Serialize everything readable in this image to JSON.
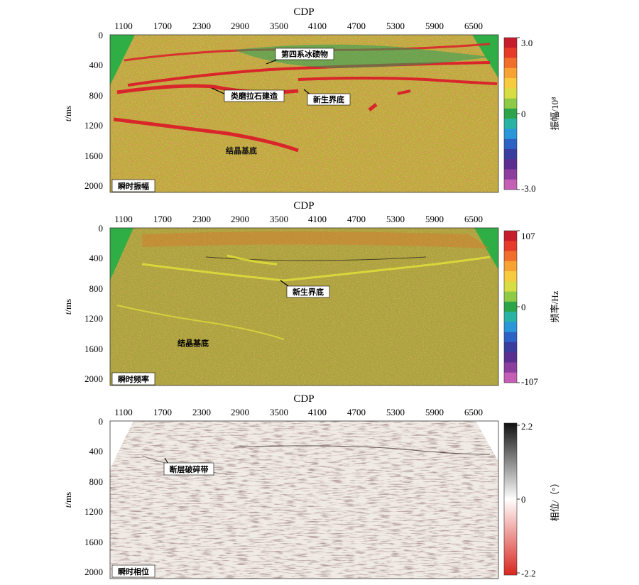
{
  "panels": [
    {
      "id": "amplitude",
      "xaxis_title": "CDP",
      "x_ticks": [
        "1100",
        "1700",
        "2300",
        "2900",
        "3500",
        "4100",
        "4700",
        "5300",
        "5900",
        "6500"
      ],
      "ylabel_italic": "t",
      "ylabel_rest": "/ms",
      "y_ticks": [
        "0",
        "400",
        "800",
        "1200",
        "1600",
        "2000"
      ],
      "corner_label": "瞬时振幅",
      "colorbar_title": "振幅/10⁸",
      "colorbar_max": "3.0",
      "colorbar_mid": "0",
      "colorbar_min": "-3.0",
      "colorbar_colors": [
        "#c71c2b",
        "#e63a2a",
        "#f06f2c",
        "#f7a334",
        "#f6cb3d",
        "#d9dd44",
        "#8fca47",
        "#2da44a",
        "#29b3a5",
        "#2b97d9",
        "#2e61c4",
        "#3a3d9e",
        "#5a2f8f",
        "#8b3e9e",
        "#c45fb5"
      ],
      "annotations": [
        "第四系冰碛物",
        "类磨拉石建造",
        "新生界底",
        "结晶基底"
      ]
    },
    {
      "id": "frequency",
      "xaxis_title": "CDP",
      "x_ticks": [
        "1100",
        "1700",
        "2300",
        "2900",
        "3500",
        "4100",
        "4700",
        "5300",
        "5900",
        "6500"
      ],
      "ylabel_italic": "t",
      "ylabel_rest": "/ms",
      "y_ticks": [
        "0",
        "400",
        "800",
        "1200",
        "1600",
        "2000"
      ],
      "corner_label": "瞬时频率",
      "colorbar_title": "频率/Hz",
      "colorbar_max": "107",
      "colorbar_mid": "0",
      "colorbar_min": "-107",
      "colorbar_colors": [
        "#c71c2b",
        "#e63a2a",
        "#f06f2c",
        "#f7a334",
        "#f6cb3d",
        "#d9dd44",
        "#8fca47",
        "#2da44a",
        "#29b3a5",
        "#2b97d9",
        "#2e61c4",
        "#3a3d9e",
        "#5a2f8f",
        "#8b3e9e",
        "#c45fb5"
      ],
      "annotations": [
        "新生界底",
        "结晶基底"
      ]
    },
    {
      "id": "phase",
      "xaxis_title": "CDP",
      "x_ticks": [
        "1100",
        "1700",
        "2300",
        "2900",
        "3500",
        "4100",
        "4700",
        "5300",
        "5900",
        "6500"
      ],
      "ylabel_italic": "t",
      "ylabel_rest": "/ms",
      "y_ticks": [
        "0",
        "400",
        "800",
        "1200",
        "1600",
        "2000"
      ],
      "corner_label": "瞬时相位",
      "colorbar_title": "相位/（°）",
      "colorbar_max": "2.2",
      "colorbar_mid": "0",
      "colorbar_min": "-2.2",
      "annotations": [
        "断层破碎带"
      ]
    }
  ],
  "colors": {
    "amp_bg": "#b8ae3a",
    "amp_red": "#d8262a",
    "amp_green": "#2a9e5a",
    "freq_bg": "#a9a63f",
    "freq_yellow": "#e4e23a",
    "freq_orange": "#d8772a",
    "mute_green": "#2fae46",
    "phase_dark": "#7a5f59",
    "phase_light": "#efe8e3"
  }
}
